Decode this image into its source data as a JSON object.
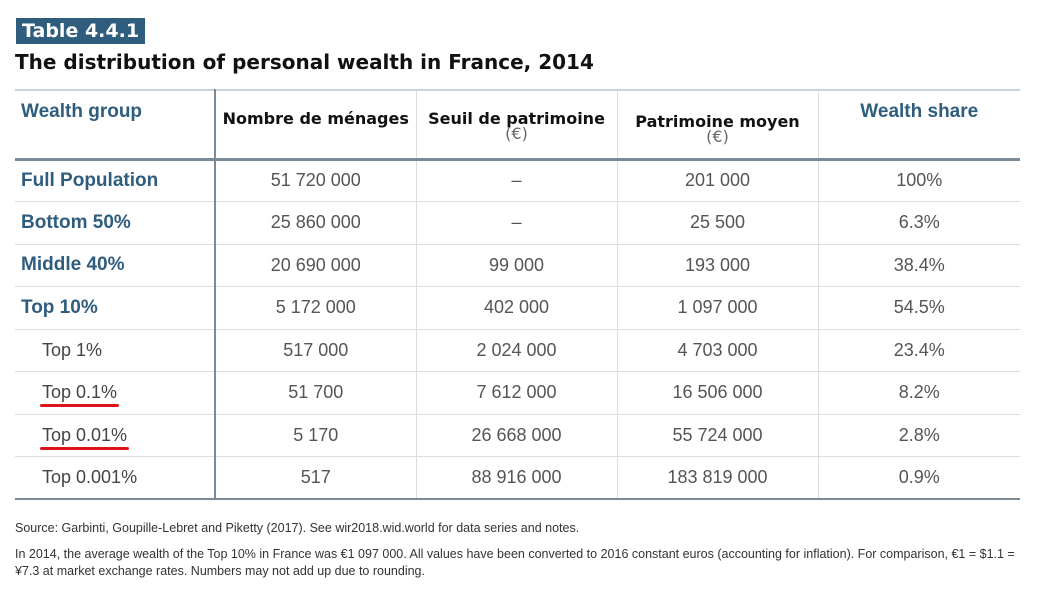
{
  "table_label": "Table 4.4.1",
  "title": "The distribution of personal wealth in France, 2014",
  "headers": {
    "wealth_group": "Wealth group",
    "households": "Nombre de ménages",
    "threshold": "Seuil de patrimoine",
    "threshold_unit": "(€)",
    "average": "Patrimoine moyen",
    "average_unit": "(€)",
    "share": "Wealth share"
  },
  "rows": [
    {
      "group": "Full Population",
      "households": "51 720 000",
      "threshold": "–",
      "average": "201 000",
      "share": "100%"
    },
    {
      "group": "Bottom 50%",
      "households": "25 860 000",
      "threshold": "–",
      "average": "25 500",
      "share": "6.3%"
    },
    {
      "group": "Middle 40%",
      "households": "20 690 000",
      "threshold": "99 000",
      "average": "193 000",
      "share": "38.4%"
    },
    {
      "group": "Top 10%",
      "households": "5 172 000",
      "threshold": "402 000",
      "average": "1 097 000",
      "share": "54.5%"
    },
    {
      "group": "Top 1%",
      "households": "517 000",
      "threshold": "2 024 000",
      "average": "4 703 000",
      "share": "23.4%"
    },
    {
      "group": "Top 0.1%",
      "households": "51 700",
      "threshold": "7 612 000",
      "average": "16 506 000",
      "share": "8.2%"
    },
    {
      "group": "Top 0.01%",
      "households": "5 170",
      "threshold": "26 668 000",
      "average": "55 724 000",
      "share": "2.8%"
    },
    {
      "group": "Top 0.001%",
      "households": "517",
      "threshold": "88 916 000",
      "average": "183 819 000",
      "share": "0.9%"
    }
  ],
  "source": "Source: Garbinti, Goupille-Lebret and Piketty (2017). See wir2018.wid.world for data series and notes.",
  "note": "In 2014, the average wealth of the Top 10% in France was €1 097 000. All values have been converted to 2016 constant euros (accounting for inflation). For comparison, €1 = $1.1 = ¥7.3 at market exchange rates. Numbers may not add up due to rounding.",
  "colors": {
    "accent": "#2e5d7e",
    "annotation_red": "#e0121b",
    "rule": "#7a8a96"
  }
}
